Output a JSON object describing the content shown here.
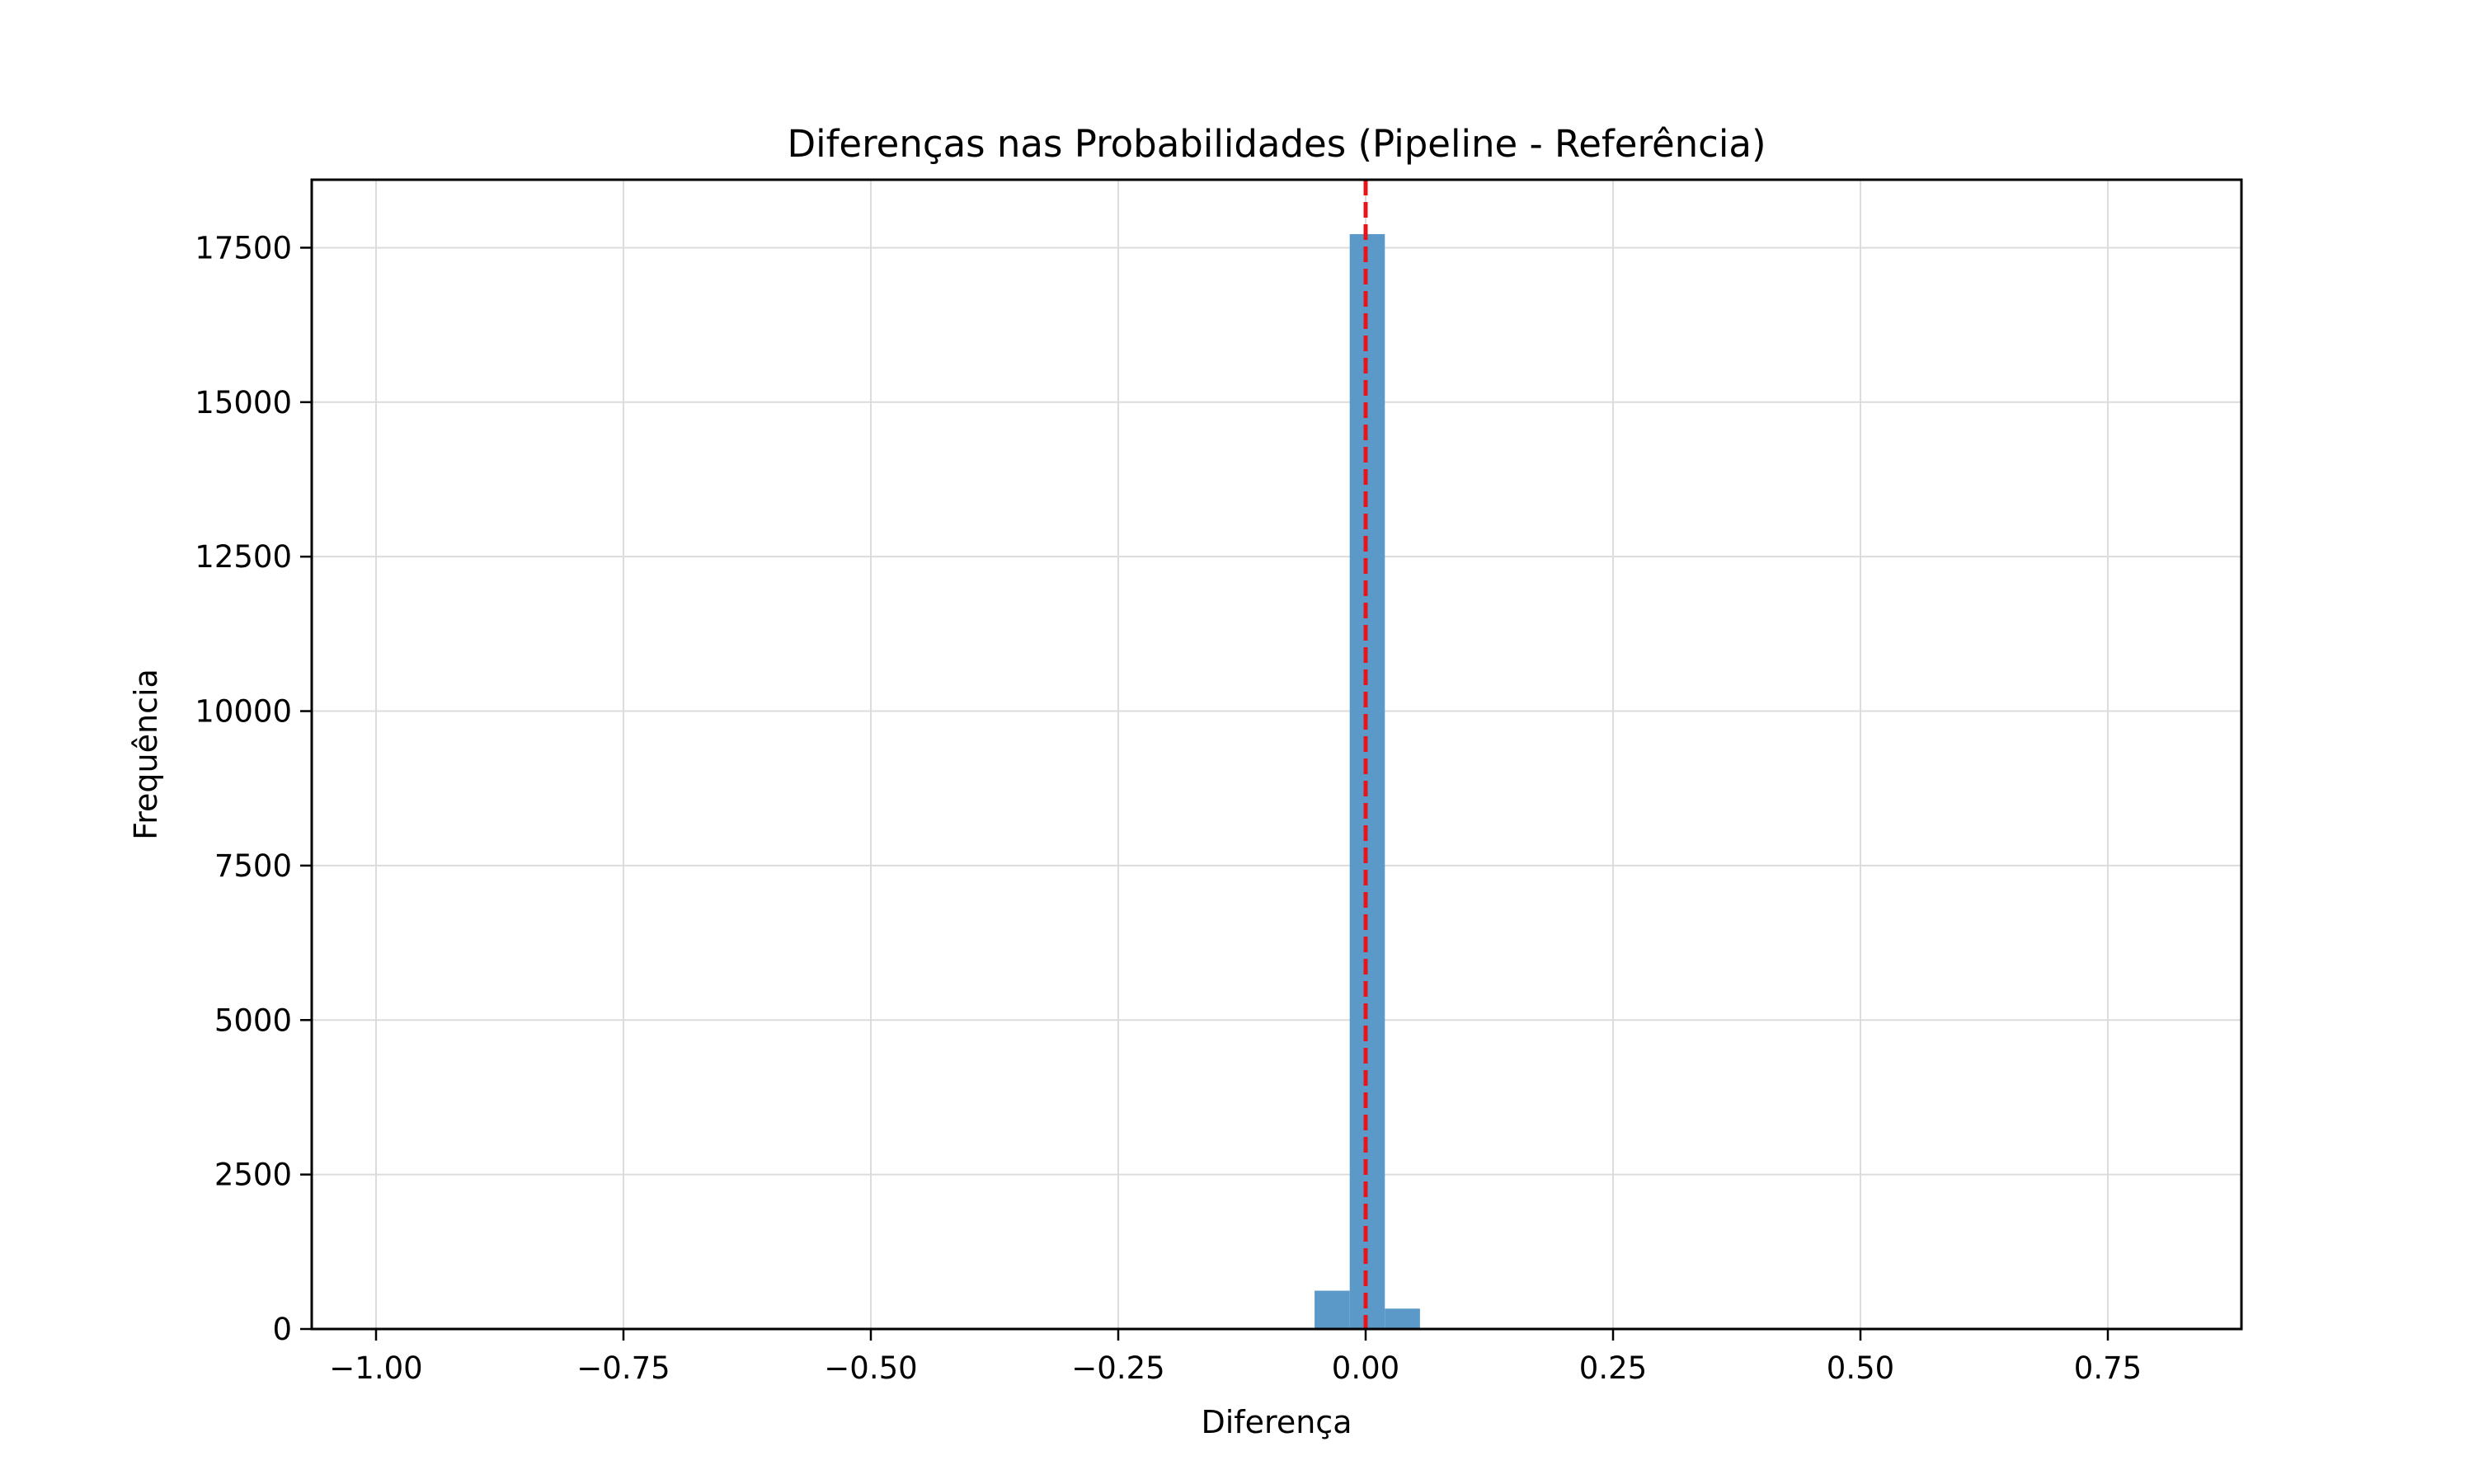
{
  "chart_data": {
    "type": "bar",
    "title": "Diferenças nas Probabilidades (Pipeline - Referência)",
    "xlabel": "Diferença",
    "ylabel": "Frequência",
    "xlim": [
      -1.065,
      0.885
    ],
    "ylim": [
      0,
      18600
    ],
    "xticks": [
      -1.0,
      -0.75,
      -0.5,
      -0.25,
      0.0,
      0.25,
      0.5,
      0.75
    ],
    "xtick_labels": [
      "−1.00",
      "−0.75",
      "−0.50",
      "−0.25",
      "0.00",
      "0.25",
      "0.50",
      "0.75"
    ],
    "yticks": [
      0,
      2500,
      5000,
      7500,
      10000,
      12500,
      15000,
      17500
    ],
    "ytick_labels": [
      "0",
      "2500",
      "5000",
      "7500",
      "10000",
      "12500",
      "15000",
      "17500"
    ],
    "grid": true,
    "bar_color": "#5b9ac8",
    "reference_line": {
      "x": 0.0,
      "color": "#e8141b",
      "style": "dashed"
    },
    "bins": [
      {
        "x0": -1.0,
        "x1": -0.9645,
        "value": 8
      },
      {
        "x0": -0.9645,
        "x1": -0.929,
        "value": 3
      },
      {
        "x0": -0.0516,
        "x1": -0.0161,
        "value": 620
      },
      {
        "x0": -0.0161,
        "x1": 0.0194,
        "value": 17720
      },
      {
        "x0": 0.0194,
        "x1": 0.0549,
        "value": 330
      }
    ]
  }
}
